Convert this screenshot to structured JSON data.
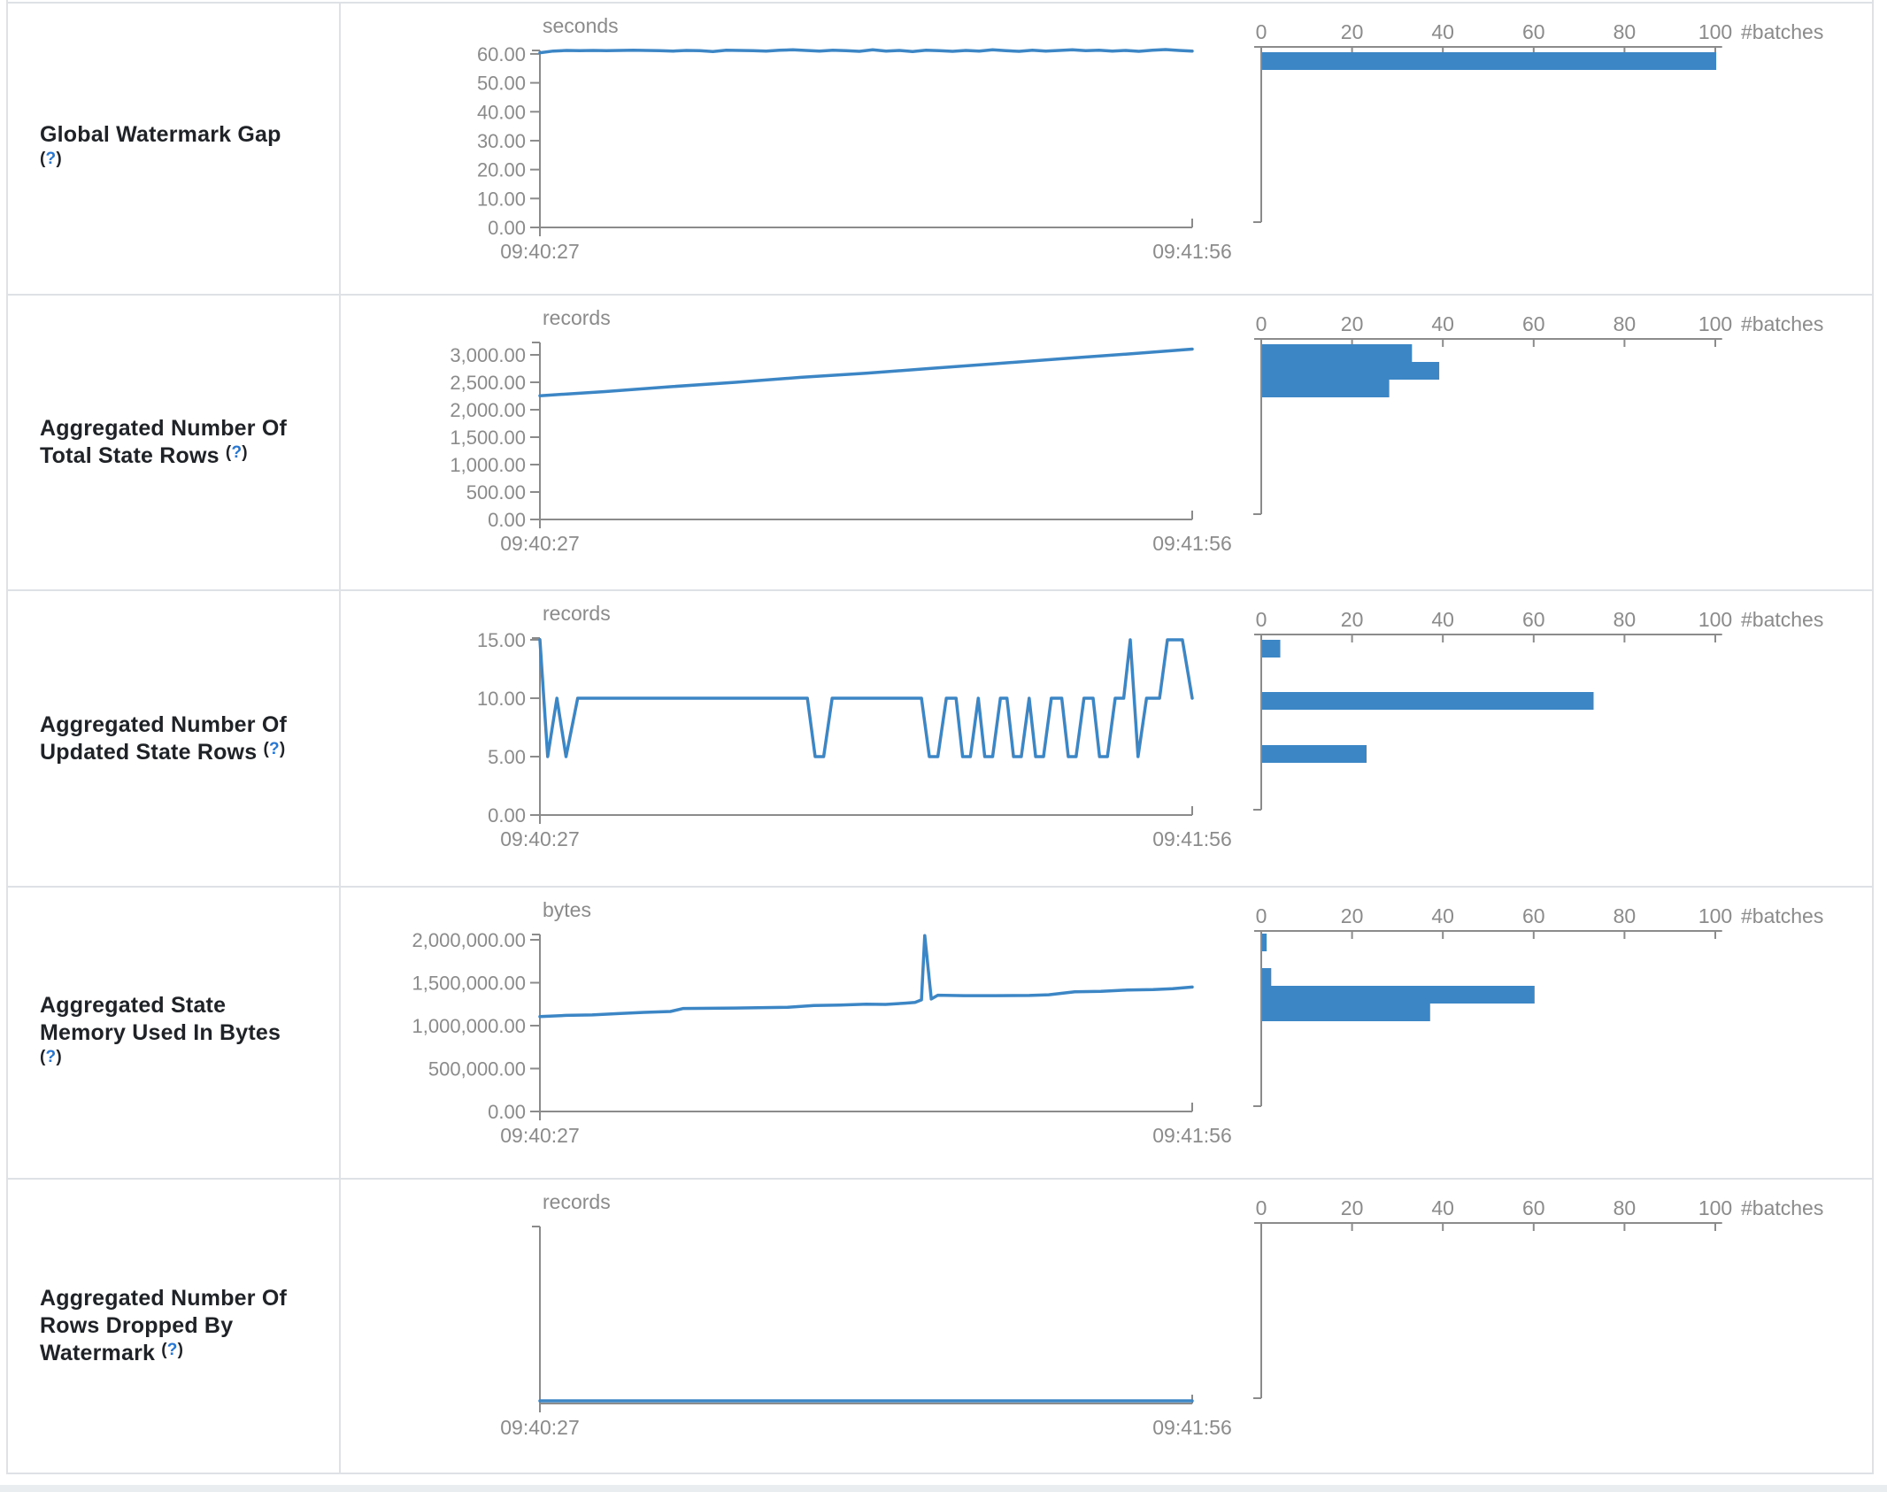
{
  "colors": {
    "series_blue": "#3d86c6",
    "bar_blue": "#3d86c6",
    "axis_grey": "#8b8b8b",
    "label_dark": "#1f2226",
    "help_blue": "#2776d2",
    "border_grey": "#dee2e6"
  },
  "help": {
    "open": "(",
    "mark": "?",
    "close": ")"
  },
  "histogram_axis": {
    "label": "#batches",
    "ticks": [
      {
        "v": 0,
        "label": "0"
      },
      {
        "v": 20,
        "label": "20"
      },
      {
        "v": 40,
        "label": "40"
      },
      {
        "v": 60,
        "label": "60"
      },
      {
        "v": 80,
        "label": "80"
      },
      {
        "v": 100,
        "label": "100"
      }
    ]
  },
  "rows": [
    {
      "metric": "Global Watermark Gap",
      "chart_data": {
        "type": "line",
        "unit": "seconds",
        "x_start": "09:40:27",
        "x_end": "09:41:56",
        "y_max": 61.2,
        "y_ticks": [
          {
            "v": 0,
            "label": "0.00"
          },
          {
            "v": 10,
            "label": "10.00"
          },
          {
            "v": 20,
            "label": "20.00"
          },
          {
            "v": 30,
            "label": "30.00"
          },
          {
            "v": 40,
            "label": "40.00"
          },
          {
            "v": 50,
            "label": "50.00"
          },
          {
            "v": 60,
            "label": "60.00"
          }
        ],
        "values": [
          60.4,
          61.0,
          61.2,
          61.1,
          61.2,
          61.1,
          61.2,
          61.3,
          61.2,
          61.1,
          61.0,
          61.2,
          61.1,
          60.8,
          61.3,
          61.2,
          61.1,
          61.0,
          61.3,
          61.4,
          61.2,
          61.0,
          61.3,
          61.1,
          60.9,
          61.4,
          61.0,
          61.2,
          60.8,
          61.3,
          61.1,
          60.9,
          61.2,
          61.0,
          61.4,
          61.1,
          60.9,
          61.3,
          61.0,
          61.2,
          61.4,
          61.1,
          61.3,
          61.0,
          61.2,
          60.9,
          61.3,
          61.5,
          61.2,
          61.0
        ]
      },
      "histogram_data": {
        "type": "bar",
        "unit": "#batches",
        "bars": [
          {
            "count": 100,
            "y": 55
          }
        ]
      }
    },
    {
      "metric": "Aggregated Number Of Total State Rows",
      "chart_data": {
        "type": "line",
        "unit": "records",
        "x_start": "09:40:27",
        "x_end": "09:41:56",
        "y_max": 3226,
        "y_ticks": [
          {
            "v": 0,
            "label": "0.00"
          },
          {
            "v": 500,
            "label": "500.00"
          },
          {
            "v": 1000,
            "label": "1,000.00"
          },
          {
            "v": 1500,
            "label": "1,500.00"
          },
          {
            "v": 2000,
            "label": "2,000.00"
          },
          {
            "v": 2500,
            "label": "2,500.00"
          },
          {
            "v": 3000,
            "label": "3,000.00"
          }
        ],
        "points": [
          [
            0,
            2255
          ],
          [
            0.1,
            2330
          ],
          [
            0.2,
            2420
          ],
          [
            0.3,
            2500
          ],
          [
            0.4,
            2590
          ],
          [
            0.5,
            2665
          ],
          [
            0.6,
            2755
          ],
          [
            0.7,
            2840
          ],
          [
            0.8,
            2930
          ],
          [
            0.9,
            3015
          ],
          [
            1,
            3105
          ]
        ]
      },
      "histogram_data": {
        "type": "bar",
        "unit": "#batches",
        "bars": [
          {
            "count": 33,
            "y": 55
          },
          {
            "count": 39,
            "y": 75
          },
          {
            "count": 28,
            "y": 95
          }
        ]
      }
    },
    {
      "metric": "Aggregated Number Of Updated State Rows",
      "chart_data": {
        "type": "line",
        "unit": "records",
        "x_start": "09:40:27",
        "x_end": "09:41:56",
        "y_max": 15.15,
        "y_ticks": [
          {
            "v": 0,
            "label": "0.00"
          },
          {
            "v": 5,
            "label": "5.00"
          },
          {
            "v": 10,
            "label": "10.00"
          },
          {
            "v": 15,
            "label": "15.00"
          }
        ],
        "points": [
          [
            0,
            15
          ],
          [
            0.012,
            5
          ],
          [
            0.026,
            10
          ],
          [
            0.04,
            5
          ],
          [
            0.058,
            10
          ],
          [
            0.41,
            10
          ],
          [
            0.422,
            5
          ],
          [
            0.435,
            5
          ],
          [
            0.448,
            10
          ],
          [
            0.585,
            10
          ],
          [
            0.597,
            5
          ],
          [
            0.61,
            5
          ],
          [
            0.623,
            10
          ],
          [
            0.638,
            10
          ],
          [
            0.648,
            5
          ],
          [
            0.66,
            5
          ],
          [
            0.672,
            10
          ],
          [
            0.682,
            5
          ],
          [
            0.694,
            5
          ],
          [
            0.706,
            10
          ],
          [
            0.716,
            10
          ],
          [
            0.726,
            5
          ],
          [
            0.738,
            5
          ],
          [
            0.75,
            10
          ],
          [
            0.76,
            5
          ],
          [
            0.772,
            5
          ],
          [
            0.784,
            10
          ],
          [
            0.8,
            10
          ],
          [
            0.81,
            5
          ],
          [
            0.822,
            5
          ],
          [
            0.834,
            10
          ],
          [
            0.848,
            10
          ],
          [
            0.858,
            5
          ],
          [
            0.87,
            5
          ],
          [
            0.882,
            10
          ],
          [
            0.895,
            10
          ],
          [
            0.905,
            15
          ],
          [
            0.917,
            5
          ],
          [
            0.93,
            10
          ],
          [
            0.95,
            10
          ],
          [
            0.962,
            15
          ],
          [
            0.985,
            15
          ],
          [
            1,
            10
          ]
        ]
      },
      "histogram_data": {
        "type": "bar",
        "unit": "#batches",
        "bars": [
          {
            "count": 4,
            "y": 55
          },
          {
            "count": 73,
            "y": 114
          },
          {
            "count": 23,
            "y": 174
          }
        ]
      }
    },
    {
      "metric": "Aggregated State Memory Used In Bytes",
      "chart_data": {
        "type": "line",
        "unit": "bytes",
        "x_start": "09:40:27",
        "x_end": "09:41:56",
        "y_max": 2062000,
        "y_ticks": [
          {
            "v": 0,
            "label": "0.00"
          },
          {
            "v": 500000,
            "label": "500,000.00"
          },
          {
            "v": 1000000,
            "label": "1,000,000.00"
          },
          {
            "v": 1500000,
            "label": "1,500,000.00"
          },
          {
            "v": 2000000,
            "label": "2,000,000.00"
          }
        ],
        "points": [
          [
            0,
            1105000
          ],
          [
            0.04,
            1120000
          ],
          [
            0.08,
            1125000
          ],
          [
            0.12,
            1140000
          ],
          [
            0.16,
            1155000
          ],
          [
            0.2,
            1165000
          ],
          [
            0.22,
            1200000
          ],
          [
            0.3,
            1205000
          ],
          [
            0.38,
            1215000
          ],
          [
            0.42,
            1235000
          ],
          [
            0.46,
            1240000
          ],
          [
            0.5,
            1250000
          ],
          [
            0.53,
            1248000
          ],
          [
            0.56,
            1262000
          ],
          [
            0.575,
            1270000
          ],
          [
            0.585,
            1300000
          ],
          [
            0.59,
            2050000
          ],
          [
            0.6,
            1310000
          ],
          [
            0.61,
            1355000
          ],
          [
            0.65,
            1350000
          ],
          [
            0.7,
            1350000
          ],
          [
            0.75,
            1352000
          ],
          [
            0.78,
            1360000
          ],
          [
            0.82,
            1395000
          ],
          [
            0.86,
            1400000
          ],
          [
            0.9,
            1415000
          ],
          [
            0.94,
            1420000
          ],
          [
            0.97,
            1430000
          ],
          [
            1,
            1450000
          ]
        ]
      },
      "histogram_data": {
        "type": "bar",
        "unit": "#batches",
        "bars": [
          {
            "count": 1,
            "y": 52
          },
          {
            "count": 2,
            "y": 91
          },
          {
            "count": 60,
            "y": 111
          },
          {
            "count": 37,
            "y": 131
          }
        ]
      }
    },
    {
      "metric": "Aggregated Number Of Rows Dropped By Watermark",
      "chart_data": {
        "type": "line",
        "unit": "records",
        "x_start": "09:40:27",
        "x_end": "09:41:56",
        "y_max": 1,
        "lift": 3,
        "y_ticks": [],
        "values": [
          0,
          0
        ]
      },
      "histogram_data": {
        "type": "bar",
        "unit": "#batches",
        "bars": []
      }
    }
  ]
}
